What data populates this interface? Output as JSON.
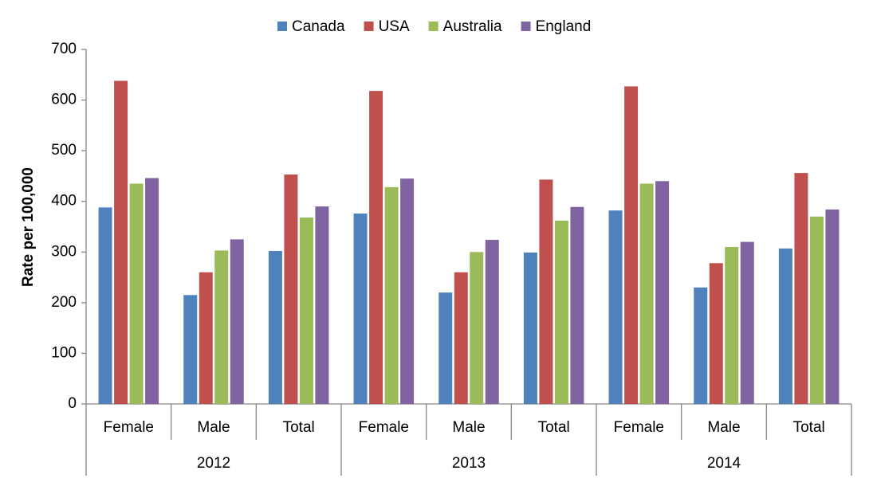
{
  "chart_data": {
    "type": "bar",
    "y_label": "Rate per 100,000",
    "categories": [
      "Female",
      "Male",
      "Total",
      "Female",
      "Male",
      "Total",
      "Female",
      "Male",
      "Total"
    ],
    "groups": [
      "2012",
      "2013",
      "2014"
    ],
    "series": [
      {
        "name": "Canada",
        "color": "#4f81bd",
        "values": [
          388,
          215,
          302,
          376,
          220,
          299,
          382,
          230,
          307
        ]
      },
      {
        "name": "USA",
        "color": "#c0504d",
        "values": [
          638,
          260,
          453,
          618,
          260,
          443,
          627,
          278,
          456
        ]
      },
      {
        "name": "Australia",
        "color": "#9bbb59",
        "values": [
          435,
          303,
          368,
          428,
          300,
          362,
          435,
          310,
          370
        ]
      },
      {
        "name": "England",
        "color": "#8064a2",
        "values": [
          446,
          325,
          390,
          445,
          324,
          389,
          440,
          320,
          384
        ]
      }
    ],
    "ylim": [
      0,
      700
    ],
    "yticks": [
      0,
      100,
      200,
      300,
      400,
      500,
      600,
      700
    ],
    "grid": false
  }
}
